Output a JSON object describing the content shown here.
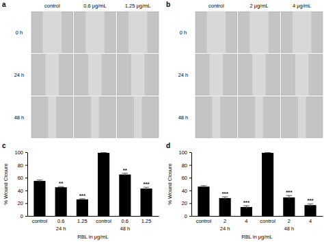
{
  "panels": [
    {
      "label": "a",
      "columns": [
        "control",
        "0.6 μg/mL",
        "1.25 μg/mL"
      ],
      "rows": [
        "0 h",
        "24 h",
        "48 h"
      ]
    },
    {
      "label": "b",
      "columns": [
        "control",
        "2 μg/mL",
        "4 μg/mL"
      ],
      "rows": [
        "0 h",
        "24 h",
        "48 h"
      ]
    }
  ],
  "chart_data": [
    {
      "type": "bar",
      "title": "c",
      "y_label": "% Wound Closure",
      "x_label": "RBL in μg/mL",
      "categories": [
        "control",
        "0.6",
        "1.25",
        "control",
        "0.6",
        "1.25"
      ],
      "group_labels": [
        "24 h",
        "48 h"
      ],
      "values": [
        55,
        45,
        26,
        99,
        65,
        43
      ],
      "errors": [
        1.5,
        1,
        1,
        0.5,
        2,
        2
      ],
      "annotations": [
        null,
        "**",
        "***",
        null,
        "**",
        "***"
      ],
      "color": "#000000",
      "ylim": [
        0,
        100
      ],
      "yticks": [
        0,
        20,
        40,
        60,
        80,
        100
      ]
    },
    {
      "type": "bar",
      "title": "d",
      "y_label": "% Wound Closure",
      "x_label": "RBL in μg/mL",
      "categories": [
        "control",
        "2",
        "4",
        "control",
        "2",
        "4"
      ],
      "group_labels": [
        "24 h",
        "48 h"
      ],
      "values": [
        46,
        28,
        14,
        99,
        29,
        17
      ],
      "errors": [
        1.5,
        2,
        2,
        0.5,
        3,
        2
      ],
      "annotations": [
        null,
        "***",
        "***",
        null,
        "***",
        "***"
      ],
      "color": "#000000",
      "ylim": [
        0,
        100
      ],
      "yticks": [
        0,
        20,
        40,
        60,
        80,
        100
      ]
    }
  ]
}
